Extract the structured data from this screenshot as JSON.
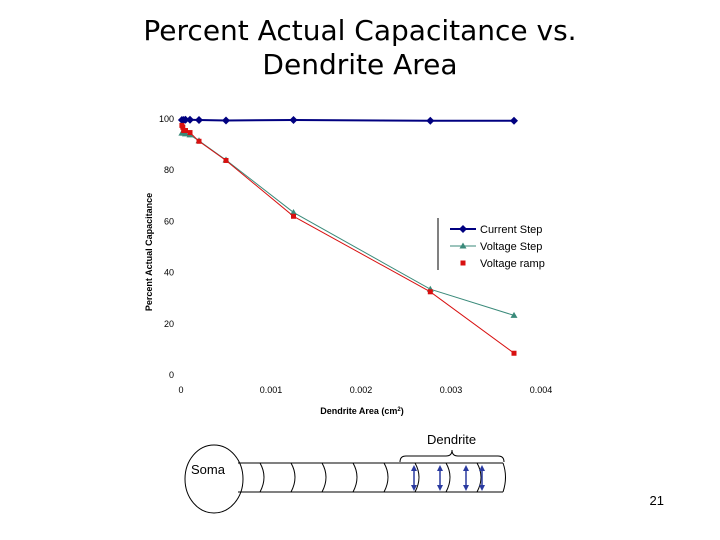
{
  "slide": {
    "title_line1": "Percent Actual Capacitance vs.",
    "title_line2": "Dendrite Area",
    "page_number": "21"
  },
  "diagram": {
    "soma_label": "Soma",
    "dendrite_label": "Dendrite"
  },
  "chart_data": {
    "type": "line",
    "title": "Percent Actual Capacitance vs. Dendrite Area",
    "xlabel": "Dendrite Area (cm",
    "xlabel_superscript": "2",
    "xlabel_close": ")",
    "ylabel": "Percent Actual Capacitance",
    "xlim": [
      0,
      0.004
    ],
    "ylim": [
      0,
      100
    ],
    "xticks": [
      0,
      0.001,
      0.002,
      0.003,
      0.004
    ],
    "xtick_labels": [
      "0",
      "0.001",
      "0.002",
      "0.003",
      "0.004"
    ],
    "yticks": [
      0,
      20,
      40,
      60,
      80,
      100
    ],
    "ytick_labels": [
      "0",
      "20",
      "40",
      "60",
      "80",
      "100"
    ],
    "grid": false,
    "legend_position": "right",
    "series": [
      {
        "name": "Current Step",
        "color": "#000080",
        "marker": "diamond",
        "x": [
          1e-05,
          3e-05,
          5e-05,
          0.0001,
          0.0002,
          0.0005,
          0.00125,
          0.00277,
          0.0037
        ],
        "y": [
          99.6,
          99.6,
          99.7,
          99.7,
          99.6,
          99.4,
          99.6,
          99.3,
          99.3
        ]
      },
      {
        "name": "Voltage Step",
        "color": "#3a8a7a",
        "marker": "triangle",
        "x": [
          1e-05,
          3e-05,
          5e-05,
          0.0001,
          0.0002,
          0.0005,
          0.00125,
          0.00277,
          0.0037
        ],
        "y": [
          94.5,
          94.5,
          94.2,
          93.8,
          91.5,
          84,
          63.5,
          33.5,
          23.3
        ]
      },
      {
        "name": "Voltage ramp",
        "color": "#d81010",
        "marker": "square",
        "x": [
          1e-05,
          2e-05,
          3e-05,
          5e-05,
          0.0001,
          0.0002,
          0.0005,
          0.00125,
          0.00277,
          0.0037
        ],
        "y": [
          97.5,
          96.8,
          95.5,
          95.5,
          94.7,
          91.3,
          83.8,
          62,
          32.5,
          8.5
        ]
      }
    ]
  }
}
